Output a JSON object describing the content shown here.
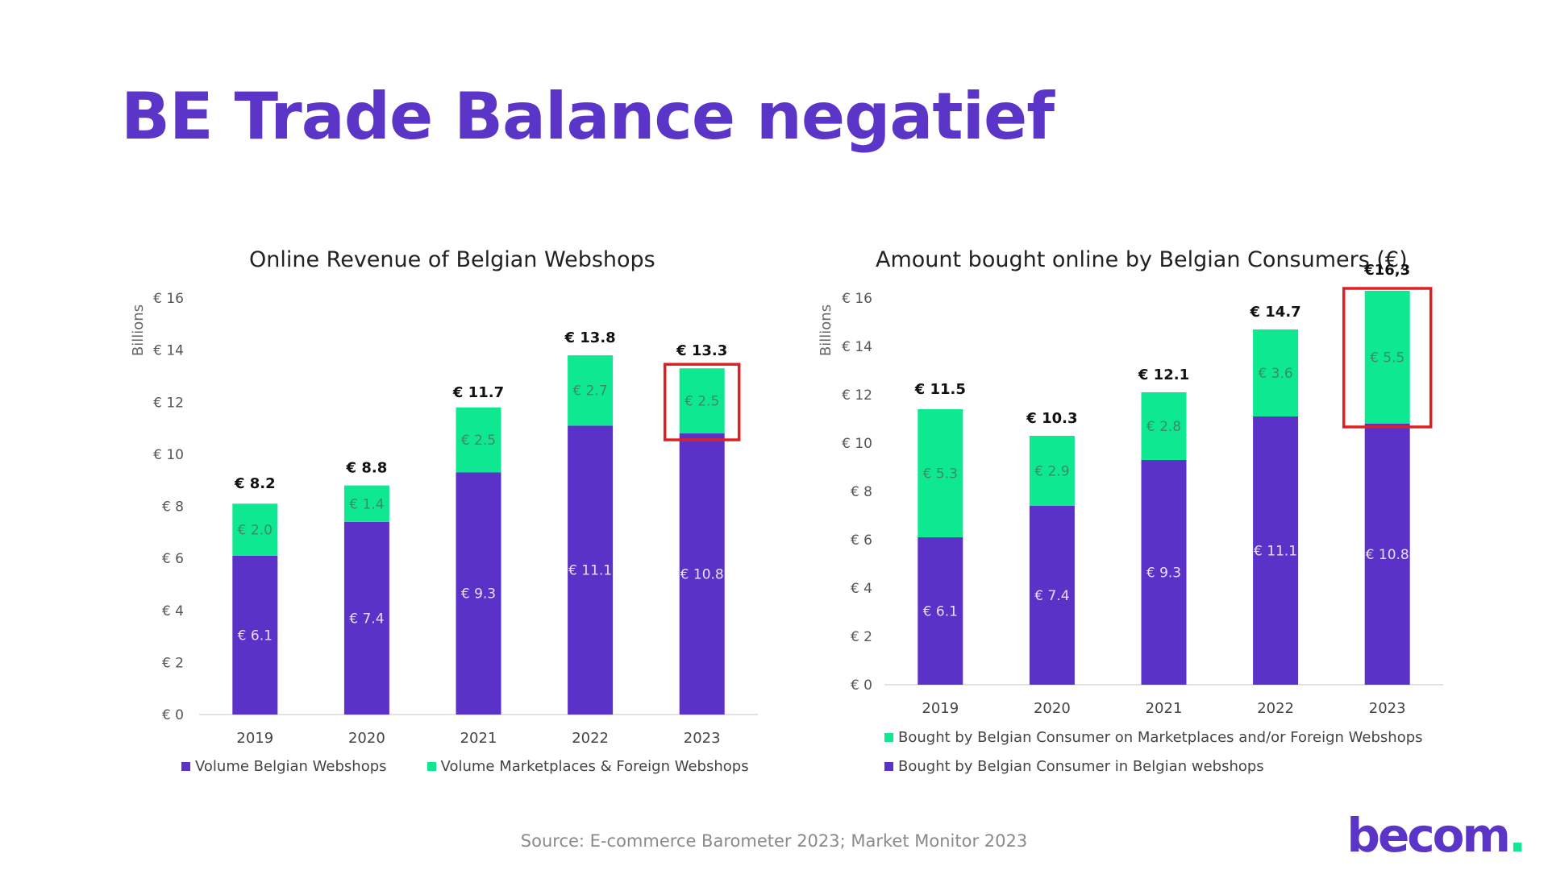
{
  "title": "BE Trade Balance negatief",
  "source": "Source: E-commerce Barometer 2023; Market Monitor 2023",
  "logo": {
    "text_main": "becom",
    "text_dot": ".",
    "color_main": "#5b35c8",
    "color_dot": "#10e892"
  },
  "colors": {
    "purple": "#5b32c8",
    "green": "#0ee890",
    "highlight": "#e02020",
    "title": "#5b35c8"
  },
  "chart_data": [
    {
      "type": "bar",
      "stacked": true,
      "title": "Online Revenue of Belgian Webshops",
      "ylabel": "Billions",
      "ylim": [
        0,
        16
      ],
      "yticks": [
        "€ 0",
        "€ 2",
        "€ 4",
        "€ 6",
        "€ 8",
        "€ 10",
        "€ 12",
        "€ 14",
        "€ 16"
      ],
      "categories": [
        "2019",
        "2020",
        "2021",
        "2022",
        "2023"
      ],
      "series": [
        {
          "name": "Volume Belgian Webshops",
          "values": [
            6.1,
            7.4,
            9.3,
            11.1,
            10.8
          ],
          "labels": [
            "€ 6.1",
            "€ 7.4",
            "€ 9.3",
            "€ 11.1",
            "€ 10.8"
          ]
        },
        {
          "name": "Volume Marketplaces & Foreign Webshops",
          "values": [
            2.0,
            1.4,
            2.5,
            2.7,
            2.5
          ],
          "labels": [
            "€ 2.0",
            "€ 1.4",
            "€ 2.5",
            "€ 2.7",
            "€ 2.5"
          ]
        }
      ],
      "totals": [
        8.2,
        8.8,
        11.7,
        13.8,
        13.3
      ],
      "total_labels": [
        "€ 8.2",
        "€ 8.8",
        "€ 11.7",
        "€ 13.8",
        "€ 13.3"
      ],
      "highlight_category": "2023",
      "legend": "bottom"
    },
    {
      "type": "bar",
      "stacked": true,
      "title": "Amount bought online  by Belgian Consumers (€)",
      "ylabel": "Billions",
      "ylim": [
        0,
        16
      ],
      "yticks": [
        "€ 0",
        "€ 2",
        "€ 4",
        "€ 6",
        "€ 8",
        "€ 10",
        "€ 12",
        "€ 14",
        "€ 16"
      ],
      "categories": [
        "2019",
        "2020",
        "2021",
        "2022",
        "2023"
      ],
      "series": [
        {
          "name": "Bought by Belgian Consumer in Belgian webshops",
          "values": [
            6.1,
            7.4,
            9.3,
            11.1,
            10.8
          ],
          "labels": [
            "€ 6.1",
            "€ 7.4",
            "€ 9.3",
            "€ 11.1",
            "€ 10.8"
          ]
        },
        {
          "name": "Bought by Belgian Consumer on Marketplaces and/or Foreign Webshops",
          "values": [
            5.3,
            2.9,
            2.8,
            3.6,
            5.5
          ],
          "labels": [
            "€ 5.3",
            "€ 2.9",
            "€ 2.8",
            "€ 3.6",
            "€ 5.5"
          ]
        }
      ],
      "totals": [
        11.5,
        10.3,
        12.1,
        14.7,
        16.3
      ],
      "total_labels": [
        "€ 11.5",
        "€ 10.3",
        "€ 12.1",
        "€ 14.7",
        "€16,3"
      ],
      "highlight_category": "2023",
      "legend": "bottom"
    }
  ]
}
